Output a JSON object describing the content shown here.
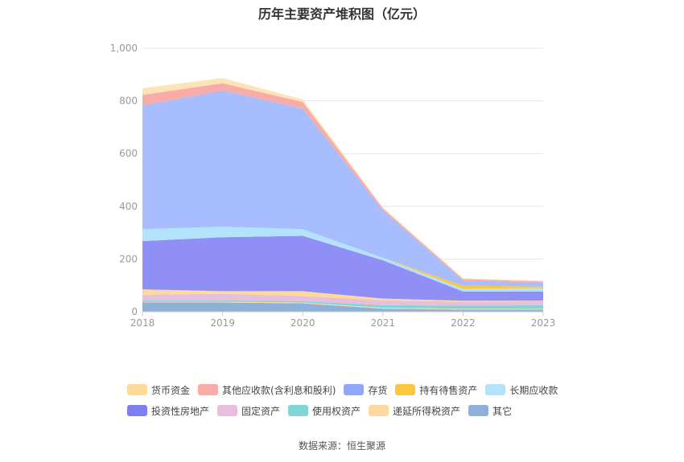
{
  "page": {
    "title": "历年主要资产堆积图（亿元）",
    "source": "数据来源：恒生聚源"
  },
  "chart_data": {
    "type": "area",
    "stacked": true,
    "title": "历年主要资产堆积图（亿元）",
    "xlabel": "",
    "ylabel": "",
    "x": [
      "2018",
      "2019",
      "2020",
      "2021",
      "2022",
      "2023"
    ],
    "ylim": [
      0,
      1000
    ],
    "yticks": [
      "0",
      "200",
      "400",
      "600",
      "800",
      "1,000"
    ],
    "grid": true,
    "legend_position": "bottom",
    "series": [
      {
        "name": "其它",
        "color": "#8fb0d9",
        "values": [
          35,
          35,
          32,
          12,
          8,
          8
        ]
      },
      {
        "name": "递延所得税资产",
        "color": "#fdd9a0",
        "values": [
          3,
          3,
          3,
          3,
          3,
          3
        ]
      },
      {
        "name": "使用权资产",
        "color": "#80d6d6",
        "values": [
          5,
          5,
          5,
          10,
          12,
          14
        ]
      },
      {
        "name": "固定资产",
        "color": "#e8bedd",
        "values": [
          22,
          25,
          20,
          18,
          15,
          15
        ]
      },
      {
        "name": "货币资金",
        "color": "#fddb96",
        "values": [
          20,
          10,
          18,
          7,
          4,
          2
        ]
      },
      {
        "name": "投资性房地产",
        "color": "#8f8ff5",
        "values": [
          183,
          205,
          210,
          145,
          35,
          35
        ]
      },
      {
        "name": "长期应收款",
        "color": "#b3e2fb",
        "values": [
          45,
          40,
          25,
          10,
          10,
          13
        ]
      },
      {
        "name": "持有待售资产",
        "color": "#fcc63e",
        "values": [
          0,
          0,
          0,
          0,
          12,
          5
        ]
      },
      {
        "name": "存货",
        "color": "#a7bdfd",
        "values": [
          470,
          517,
          458,
          180,
          20,
          15
        ]
      },
      {
        "name": "其他应收款(含利息和股利)",
        "color": "#f9aca7",
        "values": [
          40,
          27,
          25,
          7,
          5,
          5
        ]
      },
      {
        "name": "递延所得税资产_top",
        "legend": false,
        "color": "#fde3b8",
        "values": [
          25,
          20,
          10,
          4,
          3,
          3
        ]
      }
    ],
    "legend": [
      [
        {
          "name": "货币资金",
          "color": "#fddb96"
        },
        {
          "name": "其他应收款(含利息和股利)",
          "color": "#f9aca7"
        },
        {
          "name": "存货",
          "color": "#8fa8fc"
        },
        {
          "name": "持有待售资产",
          "color": "#fcc63e"
        },
        {
          "name": "长期应收款",
          "color": "#b3e2fb"
        }
      ],
      [
        {
          "name": "投资性房地产",
          "color": "#7f7ff4"
        },
        {
          "name": "固定资产",
          "color": "#e8bedd"
        },
        {
          "name": "使用权资产",
          "color": "#80d6d6"
        },
        {
          "name": "递延所得税资产",
          "color": "#fdd9a0"
        },
        {
          "name": "其它",
          "color": "#8fb0d9"
        }
      ]
    ]
  }
}
